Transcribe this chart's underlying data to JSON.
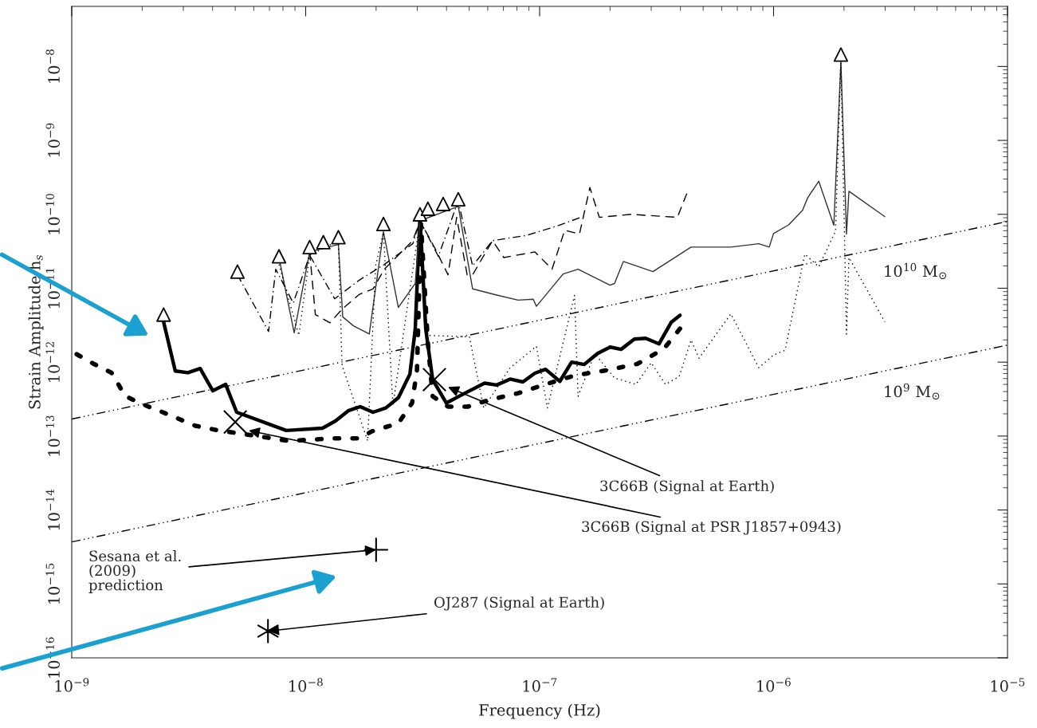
{
  "chart_data": {
    "type": "line",
    "xlabel": "Frequency (Hz)",
    "ylabel": "Strain Amplitude h$_{s}$",
    "log": "xy",
    "xlim": [
      1e-09,
      1e-05
    ],
    "ylim": [
      1e-16,
      6.5e-08
    ],
    "xticks": [
      {
        "value": 1e-09,
        "label": "10$^{−9}$"
      },
      {
        "value": 1e-08,
        "label": "10$^{−8}$"
      },
      {
        "value": 1e-07,
        "label": "10$^{−7}$"
      },
      {
        "value": 1e-06,
        "label": "10$^{−6}$"
      },
      {
        "value": 1e-05,
        "label": "10$^{−5}$"
      }
    ],
    "yticks": [
      {
        "value": 1e-16,
        "label": "10$^{−16}$"
      },
      {
        "value": 1e-15,
        "label": "10$^{−15}$"
      },
      {
        "value": 1e-14,
        "label": "10$^{−14}$"
      },
      {
        "value": 1e-13,
        "label": "10$^{−13}$"
      },
      {
        "value": 1e-12,
        "label": "10$^{−12}$"
      },
      {
        "value": 1e-11,
        "label": "10$^{−11}$"
      },
      {
        "value": 1e-10,
        "label": "10$^{−10}$"
      },
      {
        "value": 1e-09,
        "label": "10$^{−9}$"
      },
      {
        "value": 1e-08,
        "label": "10$^{−8}$"
      }
    ],
    "grid": false,
    "series": [
      {
        "type": "line",
        "line_style": "solid",
        "marker": "none",
        "color": "#000000",
        "x": [
          2.47e-09,
          2.77e-09,
          3.14e-09,
          3.54e-09,
          4.01e-09,
          4.55e-09,
          5.07e-09,
          8.26e-09,
          1.18e-08,
          1.34e-08,
          1.52e-08,
          1.71e-08,
          1.94e-08,
          2.2e-08,
          2.49e-08,
          2.79e-08,
          2.94e-08,
          3.08e-08,
          3.26e-08,
          3.49e-08,
          3.99e-08,
          4.79e-08,
          5.82e-08,
          6.55e-08,
          7.48e-08,
          8.48e-08,
          9.55e-08,
          1.06e-07,
          1.22e-07,
          1.37e-07,
          1.55e-07,
          1.77e-07,
          2e-07,
          2.23e-07,
          2.54e-07,
          2.84e-07,
          3.24e-07,
          3.65e-07,
          3.98e-07
        ],
        "values": [
          3.5e-12,
          7.6e-13,
          7.2e-13,
          8.2e-13,
          4.1e-13,
          5e-13,
          2.1e-13,
          1.19e-13,
          1.28e-13,
          1.6e-13,
          2.2e-13,
          2.5e-13,
          2.1e-13,
          2.4e-13,
          3.3e-13,
          6.9e-13,
          2.8e-12,
          9.1e-11,
          2.8e-12,
          5.8e-13,
          2.8e-13,
          3.8e-13,
          5.2e-13,
          4.9e-13,
          5.9e-13,
          5.4e-13,
          7.1e-13,
          8e-13,
          5.5e-13,
          1e-12,
          9.3e-13,
          1.31e-12,
          1.6e-12,
          1.49e-12,
          2.05e-12,
          2.1e-12,
          1.77e-12,
          3.45e-12,
          4.3e-12
        ]
      },
      {
        "type": "line",
        "line_style": "dotted",
        "marker": "none",
        "color": "#000000",
        "x": [
          1.05e-09,
          1.24e-09,
          1.48e-09,
          1.69e-09,
          1.95e-09,
          2.45e-09,
          3.37e-09,
          4.24e-09,
          5.84e-09,
          8.45e-09,
          1.3e-08,
          1.69e-08,
          1.92e-08,
          2.49e-08,
          2.85e-08,
          2.99e-08,
          3.11e-08,
          3.33e-08,
          3.49e-08,
          4.06e-08,
          4.93e-08,
          6.01e-08,
          8.09e-08,
          1.08e-07,
          1.41e-07,
          1.95e-07,
          2.62e-07,
          3.4e-07,
          4.07e-07
        ],
        "values": [
          1.28e-12,
          9.5e-13,
          7.2e-13,
          3.5e-13,
          2.8e-13,
          2.1e-13,
          1.38e-13,
          1.19e-13,
          1.03e-13,
          8.6e-14,
          9.3e-14,
          9.3e-14,
          1.16e-13,
          1.49e-13,
          2.8e-13,
          7.8e-13,
          7.4e-11,
          1.81e-12,
          3.45e-13,
          2.5e-13,
          2.5e-13,
          3.05e-13,
          3.8e-13,
          5.1e-13,
          6.6e-13,
          7.8e-13,
          9.5e-13,
          1.52e-12,
          3.1e-12
        ]
      },
      {
        "type": "line",
        "line_style": "solid",
        "marker": "none",
        "color": "#333333",
        "x": [
          7.69e-09,
          8.93e-09,
          1.04e-08,
          1.38e-08,
          1.44e-08,
          1.6e-08,
          1.87e-08,
          2.15e-08,
          2.49e-08,
          2.94e-08,
          3.08e-08,
          4.49e-08,
          5.17e-08,
          6.44e-08,
          8.09e-08,
          9.39e-08,
          9.69e-08,
          1.26e-07,
          1.46e-07,
          2e-07,
          2.09e-07,
          2.28e-07,
          3.05e-07,
          4.44e-07,
          6.57e-07,
          8.65e-07,
          9.58e-07,
          1e-06,
          1.16e-06,
          1.33e-06,
          1.4e-06,
          1.56e-06,
          1.81e-06,
          1.94e-06,
          2.05e-06,
          2.1e-06,
          2.99e-06
        ],
        "values": [
          2.6e-11,
          2.5e-12,
          3.1e-11,
          3.9e-11,
          4.1e-12,
          3.1e-12,
          2.4e-12,
          5.8e-11,
          5.5e-12,
          1.16e-11,
          8.2e-11,
          1.28e-10,
          9.8e-12,
          8.2e-12,
          6.9e-12,
          7.1e-12,
          5.7e-12,
          1.56e-11,
          1.81e-11,
          1.1e-11,
          1.16e-11,
          2.3e-11,
          1.68e-11,
          3.6e-11,
          3.6e-11,
          4e-11,
          3.6e-11,
          5.5e-11,
          7.2e-11,
          1.13e-10,
          1.68e-10,
          2.8e-10,
          7.1e-11,
          1.16e-08,
          5.4e-11,
          2.05e-10,
          9.3e-11
        ]
      },
      {
        "type": "line",
        "line_style": "dotted",
        "marker": "none",
        "color": "#000000",
        "x": [
          7.69e-09,
          9.35e-09,
          1.04e-08,
          1.38e-08,
          1.43e-08,
          1.84e-08,
          1.99e-08,
          2.15e-08,
          2.36e-08,
          3.03e-08,
          3.33e-08,
          5.01e-08,
          5.77e-08,
          7.48e-08,
          9.69e-08,
          1.08e-07,
          1.41e-07,
          1.46e-07,
          1.72e-07,
          2.09e-07,
          2.58e-07,
          3e-07,
          3.45e-07,
          3.95e-07,
          4.44e-07,
          4.8e-07,
          6.57e-07,
          8.65e-07,
          1e-06,
          1.12e-06,
          1.36e-06,
          1.56e-06,
          1.84e-06,
          1.94e-06,
          2.05e-06,
          2.1e-06,
          2.99e-06
        ],
        "values": [
          2.1e-11,
          2.3e-12,
          2.8e-11,
          4.4e-11,
          9.1e-13,
          8.6e-14,
          2e-11,
          5.7e-11,
          2.6e-13,
          5.7e-11,
          2.3e-12,
          2.2e-12,
          2.4e-13,
          8.4e-13,
          1.64e-12,
          2.4e-13,
          8e-12,
          3.45e-13,
          1.31e-12,
          6.1e-13,
          5e-13,
          9.8e-13,
          5e-13,
          6.4e-13,
          2e-12,
          1.13e-12,
          4.5e-12,
          8.4e-13,
          1.25e-12,
          1.45e-12,
          2.9e-11,
          1.95e-11,
          5.9e-11,
          1.22e-08,
          2.4e-12,
          2.6e-11,
          3.5e-12
        ]
      },
      {
        "type": "line",
        "line_style": "dashed",
        "marker": "none",
        "color": "#000000",
        "x": [
          1.04e-08,
          1.1e-08,
          1.27e-08,
          1.43e-08,
          1.69e-08,
          1.94e-08,
          2.17e-08,
          2.87e-08,
          3.08e-08,
          3.58e-08,
          4.06e-08,
          4.42e-08,
          4.9e-08,
          5.17e-08,
          6.29e-08,
          7.03e-08,
          9.55e-08,
          1.13e-07,
          1.28e-07,
          1.48e-07,
          1.64e-07,
          1.8e-07,
          2.46e-07,
          3.88e-07,
          4.27e-07
        ],
        "values": [
          3.1e-11,
          4.4e-12,
          3.4e-12,
          5.2e-12,
          8.2e-12,
          9.8e-12,
          1.81e-11,
          4.4e-11,
          8.2e-11,
          3.4e-11,
          1.52e-11,
          9.1e-11,
          1.52e-11,
          1.52e-11,
          4.4e-11,
          2.6e-11,
          3.1e-11,
          1.81e-11,
          6.1e-11,
          5.4e-11,
          2.3e-10,
          9.1e-11,
          1e-10,
          9.1e-11,
          1.95e-10
        ]
      },
      {
        "type": "line",
        "line_style": "dashdot",
        "marker": "none",
        "color": "#000000",
        "x": [
          5.11e-09,
          6.94e-09,
          7.45e-09,
          8.85e-09,
          1.04e-08,
          1.33e-08,
          1.69e-08,
          2.17e-08,
          2.87e-08,
          3.08e-08,
          3.69e-08,
          4.49e-08,
          5.17e-08,
          6.29e-08,
          8.82e-08,
          1.18e-07,
          1.5e-07
        ],
        "values": [
          1.52e-11,
          2.6e-12,
          1.81e-11,
          6.3e-12,
          2.8e-11,
          7.2e-12,
          1.28e-11,
          2.1e-11,
          4e-11,
          8.2e-11,
          2.7e-11,
          1.52e-10,
          2e-11,
          4.4e-11,
          5.2e-11,
          6.9e-11,
          9.1e-11
        ]
      },
      {
        "type": "line",
        "line_style": "dashdotdotdot",
        "marker": "none",
        "color": "#000000",
        "x": [
          1e-09,
          1e-05
        ],
        "values": [
          1.7e-13,
          8e-11
        ]
      },
      {
        "type": "line",
        "line_style": "dashdotdotdot",
        "marker": "none",
        "color": "#000000",
        "x": [
          1e-09,
          1e-05
        ],
        "values": [
          3.7e-15,
          1.7e-12
        ]
      },
      {
        "type": "scatter",
        "marker": "triangle",
        "color": "#000000",
        "x": [
          2.47e-09,
          5.11e-09,
          7.69e-09,
          1.04e-08,
          1.19e-08,
          1.38e-08,
          2.15e-08,
          3.08e-08,
          3.33e-08,
          3.87e-08,
          4.49e-08,
          1.94e-06
        ],
        "values": [
          4.4e-12,
          1.68e-11,
          2.7e-11,
          3.6e-11,
          4.2e-11,
          4.9e-11,
          7.4e-11,
          1e-10,
          1.19e-10,
          1.38e-10,
          1.6e-10,
          1.45e-08
        ]
      },
      {
        "type": "scatter",
        "marker": "cross",
        "color": "#000000",
        "x": [
          5e-09,
          3.55e-08
        ],
        "values": [
          1.55e-13,
          5.8e-13
        ]
      },
      {
        "type": "scatter",
        "marker": "cross",
        "color": "#000000",
        "x": [
          2e-08
        ],
        "values": [
          2.9e-15
        ]
      },
      {
        "type": "scatter",
        "marker": "cross",
        "color": "#000000",
        "x": [
          6.9e-09
        ],
        "values": [
          2.3e-16
        ]
      }
    ],
    "annotations": [
      {
        "text": "3C66B (Signal at Earth)",
        "x": 4.06e-08,
        "y": 4.6e-13
      },
      {
        "text": "3C66B (Signal at PSR J1857+0943)",
        "x": 5.71e-09,
        "y": 1.19e-13
      },
      {
        "text": "Sesana et al.\n(2009)\nprediction",
        "x": 2e-08,
        "y": 2.9e-15
      },
      {
        "text": "OJ287 (Signal at Earth)",
        "x": 6.9e-09,
        "y": 2.3e-16
      },
      "10$^{10}$ M$_{⊙}$",
      "10$^{9}$ M$_{⊙}$"
    ]
  }
}
